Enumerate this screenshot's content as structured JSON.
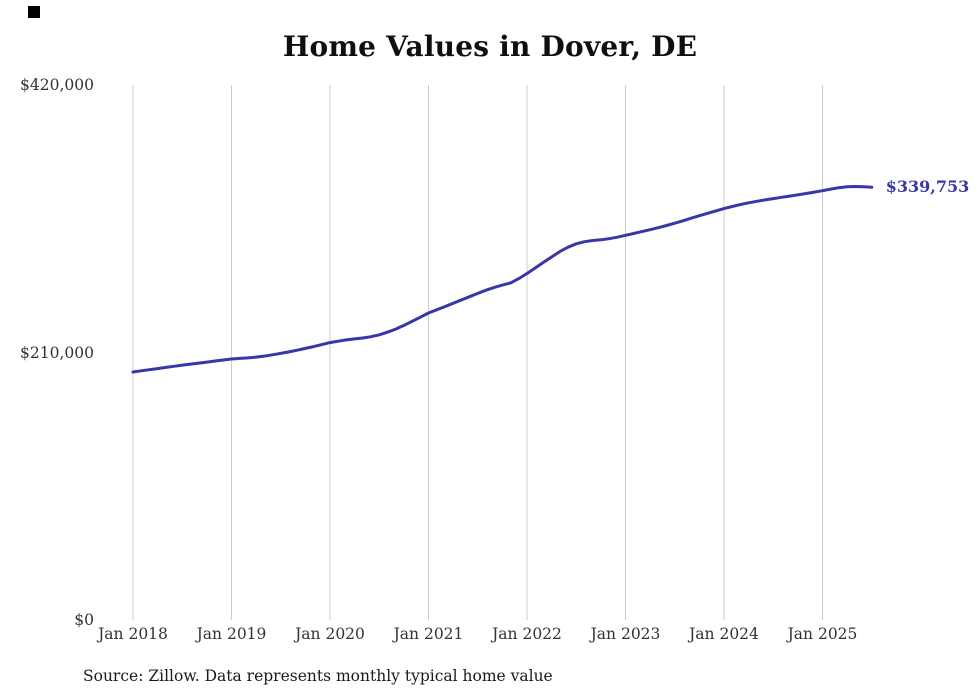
{
  "title": "Home Values in Dover, DE",
  "source_note": "Source: Zillow. Data represents monthly typical home value",
  "colors": {
    "line": "#3936a8",
    "grid": "#cccccc",
    "title_text": "#0f0f0f",
    "axis_text": "#333333",
    "end_label_text": "#3936a8"
  },
  "chart_data": {
    "type": "line",
    "title": "Home Values in Dover, DE",
    "xlabel": "",
    "ylabel": "",
    "ylim": [
      0,
      420000
    ],
    "grid": "vertical-only",
    "legend": "none",
    "x_frequency": "monthly",
    "x_start": "Jan 2018",
    "x_end": "Jul 2025",
    "x_tick_labels": [
      "Jan 2018",
      "Jan 2019",
      "Jan 2020",
      "Jan 2021",
      "Jan 2022",
      "Jan 2023",
      "Jan 2024",
      "Jan 2025"
    ],
    "y_ticks": [
      {
        "label": "$0",
        "value": 0
      },
      {
        "label": "$210,000",
        "value": 210000
      },
      {
        "label": "$420,000",
        "value": 420000
      }
    ],
    "final_value": 339753,
    "final_value_label": "$339,753",
    "series": [
      {
        "name": "Typical home value",
        "values": [
          194700,
          195600,
          196500,
          197400,
          198300,
          199200,
          200100,
          200900,
          201700,
          202500,
          203300,
          204100,
          204900,
          205400,
          205800,
          206400,
          207200,
          208200,
          209300,
          210500,
          211800,
          213200,
          214600,
          216200,
          217800,
          218900,
          219900,
          220700,
          221400,
          222400,
          223900,
          225900,
          228400,
          231300,
          234400,
          237700,
          241000,
          243500,
          246000,
          248600,
          251200,
          253800,
          256400,
          258900,
          261100,
          262900,
          264600,
          268000,
          272000,
          276300,
          280700,
          285000,
          289200,
          292700,
          295300,
          297000,
          297900,
          298500,
          299300,
          300500,
          302000,
          303400,
          304900,
          306400,
          308000,
          309700,
          311500,
          313400,
          315400,
          317400,
          319300,
          321200,
          323000,
          324600,
          326100,
          327500,
          328700,
          329800,
          330800,
          331800,
          332800,
          333800,
          334800,
          335900,
          337000,
          338300,
          339400,
          340100,
          340300,
          340100,
          339753
        ]
      }
    ]
  }
}
